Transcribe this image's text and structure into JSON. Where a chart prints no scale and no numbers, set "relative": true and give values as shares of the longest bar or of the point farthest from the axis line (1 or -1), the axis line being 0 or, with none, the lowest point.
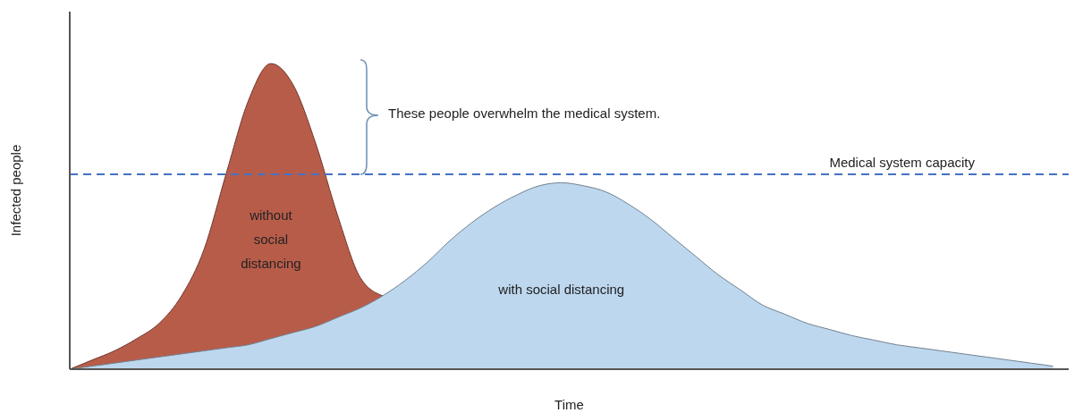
{
  "chart_data": {
    "type": "area",
    "relative": true,
    "xlabel": "Time",
    "ylabel": "Infected people",
    "categories": [
      null,
      null,
      null,
      null,
      null,
      null,
      null,
      null,
      null,
      null,
      null,
      null,
      null,
      null,
      null,
      null,
      null,
      null,
      null,
      null,
      null,
      null,
      null,
      null,
      null,
      null,
      null,
      null,
      null,
      null,
      null,
      null,
      null,
      null,
      null,
      null,
      null,
      null,
      null,
      null,
      null,
      null,
      null,
      null,
      null
    ],
    "series": [
      {
        "name": "without social distancing",
        "color": "#b85c4a",
        "values": [
          0,
          0.03,
          0.06,
          0.1,
          0.15,
          0.24,
          0.39,
          0.64,
          0.88,
          1,
          0.93,
          0.74,
          0.5,
          0.3,
          0.24,
          null,
          null,
          null,
          null,
          null,
          null,
          null,
          null,
          null,
          null,
          null,
          null,
          null,
          null,
          null,
          null,
          null,
          null,
          null,
          null,
          null,
          null,
          null,
          null,
          null,
          null,
          null,
          null,
          null,
          null
        ]
      },
      {
        "name": "with social distancing",
        "color": "#bdd7ee",
        "values": [
          0,
          0.01,
          0.02,
          0.03,
          0.04,
          0.05,
          0.06,
          0.07,
          0.08,
          0.1,
          0.12,
          0.14,
          0.17,
          0.2,
          0.24,
          0.29,
          0.35,
          0.42,
          0.48,
          0.53,
          0.57,
          0.6,
          0.61,
          0.6,
          0.58,
          0.54,
          0.49,
          0.43,
          0.37,
          0.31,
          0.26,
          0.21,
          0.18,
          0.15,
          0.13,
          0.11,
          0.095,
          0.08,
          0.07,
          0.06,
          0.05,
          0.04,
          0.03,
          0.02,
          0.01
        ]
      }
    ],
    "ref_lines": [
      {
        "axis": "y",
        "value": 0.638,
        "label": "Medical system capacity",
        "color": "#4472c4",
        "line_style": "dashed"
      }
    ],
    "annotations": [
      "These people overwhelm the medical system."
    ]
  }
}
